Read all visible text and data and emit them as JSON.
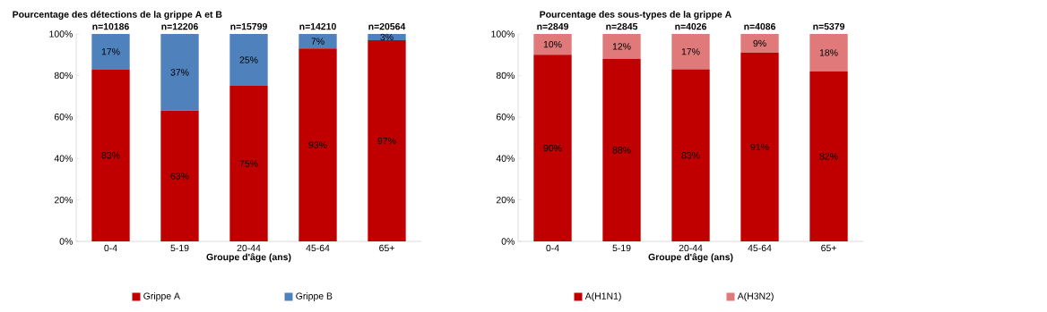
{
  "chart_data": [
    {
      "type": "bar",
      "stacked": true,
      "title": "Pourcentage  des détections  de la grippe A et B",
      "xlabel": "Groupe d'âge  (ans)",
      "categories": [
        "0-4",
        "5-19",
        "20-44",
        "45-64",
        "65+"
      ],
      "ylim": [
        0,
        100
      ],
      "yticks": [
        {
          "value": 0,
          "label": "0%"
        },
        {
          "value": 20,
          "label": "20%"
        },
        {
          "value": 40,
          "label": "40%"
        },
        {
          "value": 60,
          "label": "60%"
        },
        {
          "value": 80,
          "label": "80%"
        },
        {
          "value": 100,
          "label": "100%"
        }
      ],
      "legend": "bottom",
      "annotations": [
        "n=10186",
        "n=12206",
        "n=15799",
        "n=14210",
        "n=20564"
      ],
      "series": [
        {
          "name": "Grippe A",
          "color": "#c00000",
          "values": [
            83,
            63,
            75,
            93,
            97
          ],
          "value_labels": [
            "83%",
            "63%",
            "75%",
            "93%",
            "97%"
          ]
        },
        {
          "name": "Grippe B",
          "color": "#4f81bd",
          "values": [
            17,
            37,
            25,
            7,
            3
          ],
          "value_labels": [
            "17%",
            "37%",
            "25%",
            "7%",
            "3%"
          ]
        }
      ]
    },
    {
      "type": "bar",
      "stacked": true,
      "title": "Pourcentage  des sous-types  de la grippe A",
      "xlabel": "Groupe d'âge  (ans)",
      "categories": [
        "0-4",
        "5-19",
        "20-44",
        "45-64",
        "65+"
      ],
      "ylim": [
        0,
        100
      ],
      "yticks": [
        {
          "value": 0,
          "label": "0%"
        },
        {
          "value": 20,
          "label": "20%"
        },
        {
          "value": 40,
          "label": "40%"
        },
        {
          "value": 60,
          "label": "60%"
        },
        {
          "value": 80,
          "label": "80%"
        },
        {
          "value": 100,
          "label": "100%"
        }
      ],
      "legend": "bottom",
      "annotations": [
        "n=2849",
        "n=2845",
        "n=4026",
        "n=4086",
        "n=5379"
      ],
      "series": [
        {
          "name": "A(H1N1)",
          "color": "#c00000",
          "values": [
            90,
            88,
            83,
            91,
            82
          ],
          "value_labels": [
            "90%",
            "88%",
            "83%",
            "91%",
            "82%"
          ]
        },
        {
          "name": "A(H3N2)",
          "color": "#e07a7a",
          "values": [
            10,
            12,
            17,
            9,
            18
          ],
          "value_labels": [
            "10%",
            "12%",
            "17%",
            "9%",
            "18%"
          ]
        }
      ]
    }
  ]
}
